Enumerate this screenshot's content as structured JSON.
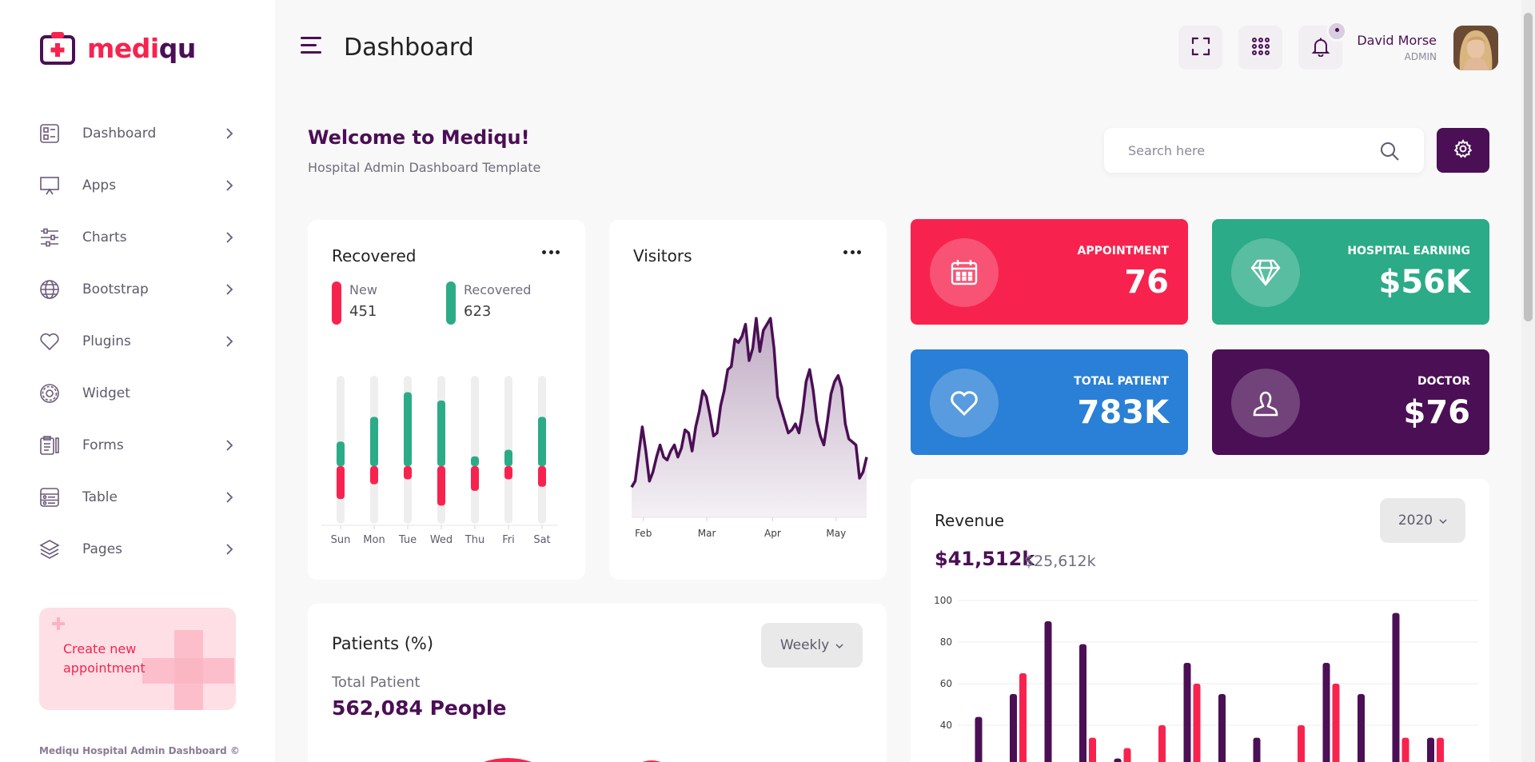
{
  "brand": {
    "part1": "medi",
    "part2": "qu",
    "colors": {
      "primary": "#4b0f55",
      "accent": "#f7234e"
    }
  },
  "sidebar": {
    "items": [
      {
        "label": "Dashboard",
        "icon": "dashboard-icon",
        "has_submenu": true
      },
      {
        "label": "Apps",
        "icon": "apps-icon",
        "has_submenu": true
      },
      {
        "label": "Charts",
        "icon": "charts-icon",
        "has_submenu": true
      },
      {
        "label": "Bootstrap",
        "icon": "globe-icon",
        "has_submenu": true
      },
      {
        "label": "Plugins",
        "icon": "heart-icon",
        "has_submenu": true
      },
      {
        "label": "Widget",
        "icon": "widget-icon",
        "has_submenu": false
      },
      {
        "label": "Forms",
        "icon": "forms-icon",
        "has_submenu": true
      },
      {
        "label": "Table",
        "icon": "table-icon",
        "has_submenu": true
      },
      {
        "label": "Pages",
        "icon": "layers-icon",
        "has_submenu": true
      }
    ],
    "promo": "Create new appointment",
    "footer": "Mediqu Hospital Admin Dashboard ©"
  },
  "header": {
    "title": "Dashboard",
    "user_name": "David Morse",
    "user_role": "ADMIN",
    "buttons": [
      "fullscreen-icon",
      "apps-grid-icon",
      "bell-icon"
    ]
  },
  "welcome": {
    "title": "Welcome to Mediqu!",
    "subtitle": "Hospital Admin Dashboard Template"
  },
  "search": {
    "placeholder": "Search here"
  },
  "recovered_card": {
    "title": "Recovered",
    "legend": [
      {
        "name": "New",
        "value": "451",
        "color": "#f7234e"
      },
      {
        "name": "Recovered",
        "value": "623",
        "color": "#2bab87"
      }
    ]
  },
  "visitors_card": {
    "title": "Visitors"
  },
  "stats": [
    {
      "label": "APPOINTMENT",
      "value": "76",
      "color": "#f7234e",
      "icon": "calendar-icon"
    },
    {
      "label": "HOSPITAL EARNING",
      "value": "$56K",
      "color": "#2bab87",
      "icon": "diamond-icon"
    },
    {
      "label": "TOTAL PATIENT",
      "value": "783K",
      "color": "#2a7fd6",
      "icon": "heart-icon"
    },
    {
      "label": "DOCTOR",
      "value": "$76",
      "color": "#4b0f55",
      "icon": "user-icon"
    }
  ],
  "revenue": {
    "title": "Revenue",
    "year": "2020",
    "amount": "$41,512k",
    "secondary": "$25,612k"
  },
  "patients": {
    "title": "Patients (%)",
    "filter": "Weekly",
    "label": "Total Patient",
    "value": "562,084 People"
  },
  "chart_data": [
    {
      "type": "bar",
      "title": "Recovered",
      "categories": [
        "Sun",
        "Mon",
        "Tue",
        "Wed",
        "Thu",
        "Fri",
        "Sat"
      ],
      "series": [
        {
          "name": "Recovered",
          "values": [
            30,
            60,
            90,
            80,
            12,
            20,
            60
          ],
          "color": "#2bab87"
        },
        {
          "name": "New",
          "values": [
            -40,
            -22,
            -16,
            -48,
            -30,
            -16,
            -25
          ],
          "color": "#f7234e"
        }
      ],
      "ylim": [
        -70,
        110
      ]
    },
    {
      "type": "area",
      "title": "Visitors",
      "x_ticks": [
        "Feb",
        "Mar",
        "Apr",
        "May"
      ],
      "values": [
        20,
        24,
        42,
        60,
        44,
        24,
        30,
        40,
        48,
        40,
        38,
        44,
        48,
        40,
        46,
        58,
        56,
        44,
        60,
        70,
        84,
        80,
        68,
        54,
        56,
        74,
        84,
        98,
        100,
        118,
        116,
        120,
        128,
        104,
        112,
        132,
        110,
        124,
        128,
        132,
        112,
        80,
        72,
        64,
        56,
        58,
        62,
        56,
        70,
        90,
        98,
        84,
        64,
        54,
        48,
        64,
        82,
        90,
        94,
        86,
        62,
        52,
        50,
        48,
        26,
        30,
        40
      ],
      "ylim": [
        0,
        140
      ],
      "color": "#4b0f55"
    },
    {
      "type": "bar",
      "title": "Revenue",
      "series": [
        {
          "values": [
            44,
            55,
            90,
            79,
            24,
            22,
            70,
            55,
            34,
            22,
            70,
            55,
            94,
            34
          ],
          "color": "#4b0f55"
        },
        {
          "values": [
            null,
            65,
            null,
            34,
            29,
            40,
            60,
            null,
            null,
            40,
            60,
            null,
            34,
            34
          ],
          "color": "#f7234e"
        }
      ],
      "y_ticks": [
        100,
        80,
        60,
        40
      ],
      "ylim": [
        0,
        100
      ]
    }
  ]
}
